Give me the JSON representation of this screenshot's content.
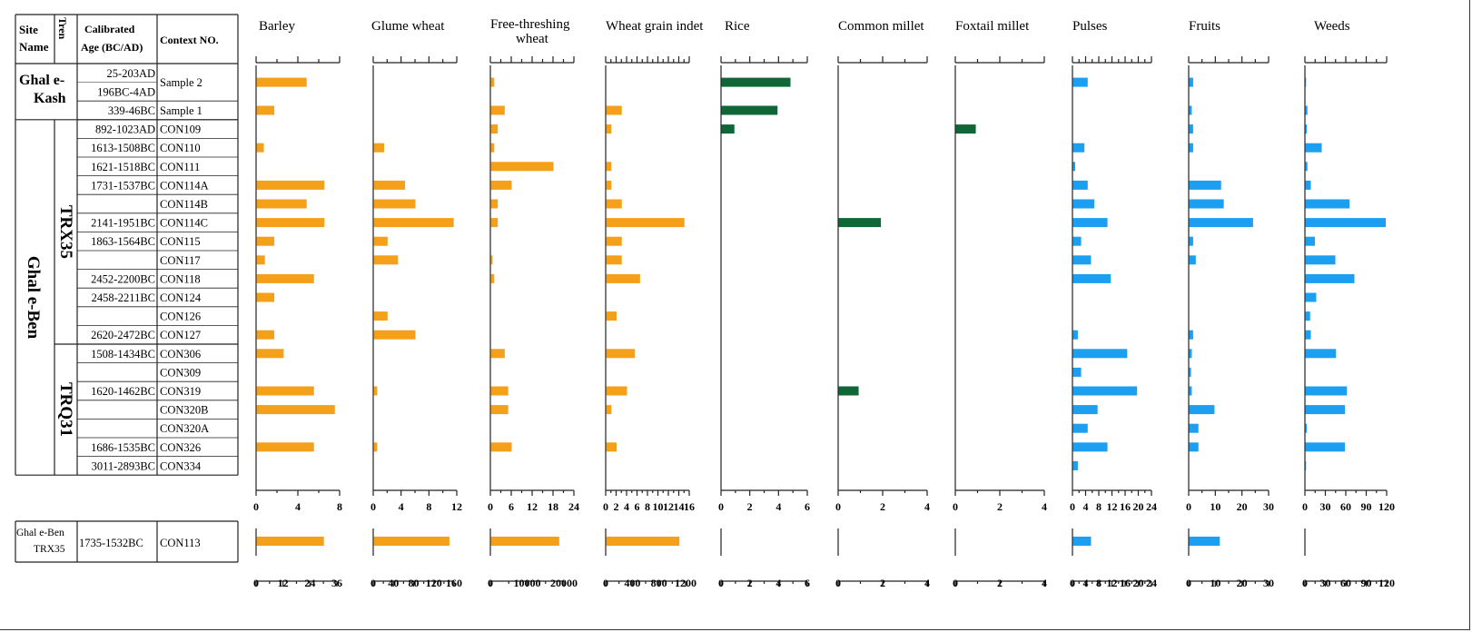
{
  "table_headers": {
    "site": "Site Name",
    "trench": "Trench",
    "age": "Calibrated Age (BC/AD)",
    "context": "Context NO."
  },
  "sites": {
    "kash": "Ghal e-Kash",
    "ben": "Ghal e-Ben",
    "ben_bottom": "Ghal e-Ben TRX35"
  },
  "trenches": [
    "TRX35",
    "TRQ31"
  ],
  "rows": [
    {
      "age": "25-203AD",
      "context": "Sample 2"
    },
    {
      "age": "196BC-4AD",
      "context": ""
    },
    {
      "age": "339-46BC",
      "context": "Sample 1"
    },
    {
      "age": "892-1023AD",
      "context": "CON109"
    },
    {
      "age": "1613-1508BC",
      "context": "CON110"
    },
    {
      "age": "1621-1518BC",
      "context": "CON111"
    },
    {
      "age": "1731-1537BC",
      "context": "CON114A"
    },
    {
      "age": "",
      "context": "CON114B"
    },
    {
      "age": "2141-1951BC",
      "context": "CON114C"
    },
    {
      "age": "1863-1564BC",
      "context": "CON115"
    },
    {
      "age": "",
      "context": "CON117"
    },
    {
      "age": "2452-2200BC",
      "context": "CON118"
    },
    {
      "age": "2458-2211BC",
      "context": "CON124"
    },
    {
      "age": "",
      "context": "CON126"
    },
    {
      "age": "2620-2472BC",
      "context": "CON127"
    },
    {
      "age": "1508-1434BC",
      "context": "CON306"
    },
    {
      "age": "",
      "context": "CON309"
    },
    {
      "age": "1620-1462BC",
      "context": "CON319"
    },
    {
      "age": "",
      "context": "CON320B"
    },
    {
      "age": "",
      "context": "CON320A"
    },
    {
      "age": "1686-1535BC",
      "context": "CON326"
    },
    {
      "age": "3011-2893BC",
      "context": "CON334"
    }
  ],
  "bottom_row": {
    "age": "1735-1532BC",
    "context": "CON113"
  },
  "colors": {
    "cereal": "#f5a01a",
    "millet_rice": "#0f6637",
    "other": "#1c9ff0",
    "line": "#222222"
  },
  "chart_data": {
    "type": "bar",
    "orientation": "horizontal",
    "categories": [
      "Sample 2",
      "Sample 1",
      "CON109",
      "CON110",
      "CON111",
      "CON114A",
      "CON114B",
      "CON114C",
      "CON115",
      "CON117",
      "CON118",
      "CON124",
      "CON126",
      "CON127",
      "CON306",
      "CON309",
      "CON319",
      "CON320B",
      "CON320A",
      "CON326",
      "CON334"
    ],
    "bottom_category": "CON113",
    "panels": [
      {
        "name": "Barley",
        "color": "cereal",
        "ticks": [
          0,
          4,
          8
        ],
        "ylim": [
          0,
          8
        ],
        "values": [
          4.8,
          1.7,
          0,
          0.7,
          0,
          6.5,
          4.8,
          6.5,
          1.7,
          0.8,
          5.5,
          1.7,
          0,
          1.7,
          2.6,
          0,
          5.5,
          7.5,
          0,
          5.5,
          0
        ],
        "bottom_ticks": [
          0,
          12,
          24,
          36
        ],
        "bottom_ylim": [
          0,
          36
        ],
        "bottom_value": 30
      },
      {
        "name": "Glume wheat",
        "color": "cereal",
        "ticks": [
          0,
          4,
          8,
          12
        ],
        "ylim": [
          0,
          12
        ],
        "values": [
          0,
          0,
          0,
          1.5,
          0,
          4.5,
          6,
          11.5,
          2,
          3.5,
          0,
          0,
          2,
          6,
          0,
          0,
          0.5,
          0,
          0,
          0.5,
          0
        ],
        "bottom_ticks": [
          0,
          40,
          80,
          120,
          160
        ],
        "bottom_ylim": [
          0,
          160
        ],
        "bottom_value": 150
      },
      {
        "name": "Free-threshing wheat",
        "color": "cereal",
        "ticks": [
          0,
          6,
          12,
          18,
          24
        ],
        "ylim": [
          0,
          24
        ],
        "values": [
          1,
          4,
          2,
          1,
          18,
          6,
          2,
          2,
          0,
          0.5,
          1,
          0,
          0,
          0,
          4,
          0,
          5,
          5,
          0,
          6,
          0
        ],
        "bottom_ticks": [
          0,
          10000,
          20000
        ],
        "bottom_ylim": [
          0,
          20000
        ],
        "bottom_value": 18600
      },
      {
        "name": "Wheat grain indet",
        "color": "cereal",
        "ticks": [
          0,
          2,
          4,
          6,
          8,
          10,
          12,
          14,
          16
        ],
        "ylim": [
          0,
          16
        ],
        "values": [
          0,
          3,
          1,
          0,
          1,
          1,
          3,
          15,
          3,
          3,
          6.5,
          0,
          2,
          0,
          5.5,
          0,
          4,
          1,
          0,
          2,
          0
        ],
        "bottom_ticks": [
          0,
          400,
          800,
          1200
        ],
        "bottom_ylim": [
          0,
          1200
        ],
        "bottom_value": 1100
      },
      {
        "name": "Rice",
        "color": "millet_rice",
        "ticks": [
          0,
          2,
          4,
          6
        ],
        "ylim": [
          0,
          6
        ],
        "values": [
          4.8,
          3.9,
          0.9,
          0,
          0,
          0,
          0,
          0,
          0,
          0,
          0,
          0,
          0,
          0,
          0,
          0,
          0,
          0,
          0,
          0,
          0
        ],
        "bottom_ticks": [
          0,
          2,
          4,
          6
        ],
        "bottom_ylim": [
          0,
          6
        ],
        "bottom_value": 0
      },
      {
        "name": "Common millet",
        "color": "millet_rice",
        "ticks": [
          0,
          2,
          4
        ],
        "ylim": [
          0,
          4
        ],
        "values": [
          0,
          0,
          0,
          0,
          0,
          0,
          0,
          1.9,
          0,
          0,
          0,
          0,
          0,
          0,
          0,
          0,
          0.9,
          0,
          0,
          0,
          0
        ],
        "bottom_ticks": [
          0,
          2,
          4
        ],
        "bottom_ylim": [
          0,
          4
        ],
        "bottom_value": 0
      },
      {
        "name": "Foxtail millet",
        "color": "millet_rice",
        "ticks": [
          0,
          2,
          4
        ],
        "ylim": [
          0,
          4
        ],
        "values": [
          0,
          0,
          0.9,
          0,
          0,
          0,
          0,
          0,
          0,
          0,
          0,
          0,
          0,
          0,
          0,
          0,
          0,
          0,
          0,
          0,
          0
        ],
        "bottom_ticks": [
          0,
          2,
          4
        ],
        "bottom_ylim": [
          0,
          4
        ],
        "bottom_value": 0
      },
      {
        "name": "Pulses",
        "color": "other",
        "ticks": [
          0,
          4,
          8,
          12,
          16,
          20,
          24
        ],
        "ylim": [
          0,
          24
        ],
        "values": [
          4.5,
          0,
          0,
          3.5,
          0.7,
          4.5,
          6.5,
          10.5,
          2.5,
          5.5,
          11.5,
          0,
          0,
          1.5,
          16.5,
          2.5,
          19.5,
          7.5,
          4.5,
          10.5,
          1.5
        ],
        "bottom_ticks": [
          0,
          4,
          8,
          12,
          16,
          20,
          24
        ],
        "bottom_ylim": [
          0,
          24
        ],
        "bottom_value": 5.5
      },
      {
        "name": "Fruits",
        "color": "other",
        "ticks": [
          0,
          10,
          20,
          30
        ],
        "ylim": [
          0,
          30
        ],
        "values": [
          1.5,
          1,
          1.5,
          1.5,
          0,
          12,
          13,
          24,
          1.5,
          2.5,
          0,
          0,
          0,
          1.5,
          1,
          0.7,
          1,
          9.5,
          3.5,
          3.5,
          0
        ],
        "bottom_ticks": [
          0,
          10,
          20,
          30
        ],
        "bottom_ylim": [
          0,
          30
        ],
        "bottom_value": 11.5
      },
      {
        "name": "Weeds",
        "color": "other",
        "ticks": [
          0,
          30,
          60,
          90,
          120
        ],
        "ylim": [
          0,
          120
        ],
        "values": [
          1,
          3,
          2,
          24,
          3,
          8,
          65,
          118,
          14,
          44,
          72,
          16,
          7,
          8,
          45,
          0,
          61,
          58,
          2,
          58,
          1
        ],
        "bottom_ticks": [
          0,
          30,
          60,
          90,
          120
        ],
        "bottom_ylim": [
          0,
          120
        ],
        "bottom_value": 0
      }
    ]
  }
}
